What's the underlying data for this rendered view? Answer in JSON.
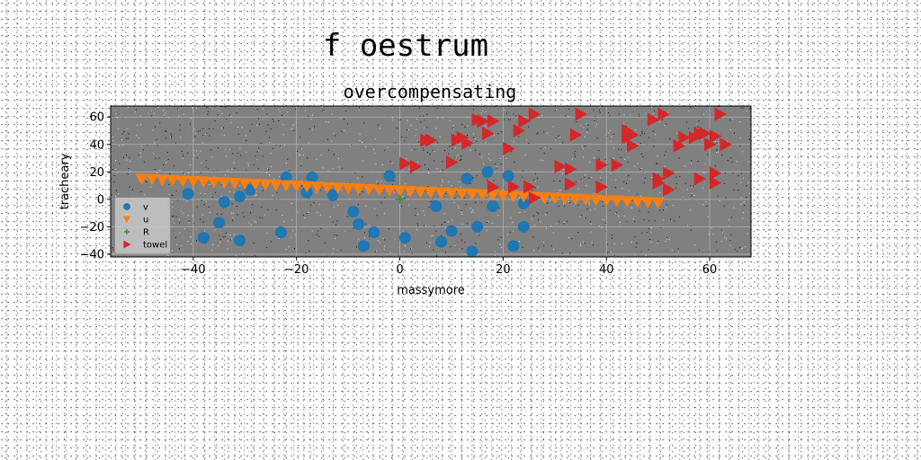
{
  "chart_data": {
    "type": "scatter",
    "suptitle": "f oestrum",
    "title": "overcompensating",
    "xlabel": "massymore",
    "ylabel": "tracheary",
    "xlim": [
      -56,
      68
    ],
    "ylim": [
      -42,
      68
    ],
    "xticks": [
      -40,
      -20,
      0,
      20,
      40,
      60
    ],
    "yticks": [
      -40,
      -20,
      0,
      20,
      40,
      60
    ],
    "grid": true,
    "legend_position": "lower-left",
    "series": [
      {
        "name": "v",
        "marker": "circle",
        "color": "#1f77b4",
        "points": [
          [
            -41,
            4
          ],
          [
            -38,
            -28
          ],
          [
            -35,
            -17
          ],
          [
            -34,
            -2
          ],
          [
            -31,
            2
          ],
          [
            -31,
            -30
          ],
          [
            -29,
            7
          ],
          [
            -23,
            -24
          ],
          [
            -22,
            16
          ],
          [
            -18,
            5
          ],
          [
            -17,
            16
          ],
          [
            -13,
            3
          ],
          [
            -9,
            -9
          ],
          [
            -8,
            -18
          ],
          [
            -7,
            -34
          ],
          [
            -5,
            -24
          ],
          [
            -2,
            17
          ],
          [
            1,
            -28
          ],
          [
            7,
            -5
          ],
          [
            8,
            -31
          ],
          [
            10,
            -23
          ],
          [
            13,
            15
          ],
          [
            14,
            -38
          ],
          [
            15,
            -20
          ],
          [
            17,
            20
          ],
          [
            18,
            -5
          ],
          [
            21,
            17
          ],
          [
            22,
            -34
          ],
          [
            24,
            -20
          ],
          [
            24,
            -3
          ]
        ]
      },
      {
        "name": "u",
        "marker": "triangle-down",
        "color": "#ff7f0e",
        "points": [
          [
            -50,
            15
          ],
          [
            -48,
            14.7
          ],
          [
            -46,
            14.3
          ],
          [
            -44,
            14
          ],
          [
            -42,
            13.6
          ],
          [
            -40,
            13.3
          ],
          [
            -38,
            12.9
          ],
          [
            -36,
            12.6
          ],
          [
            -34,
            12.2
          ],
          [
            -32,
            11.9
          ],
          [
            -30,
            11.5
          ],
          [
            -28,
            11.2
          ],
          [
            -26,
            10.9
          ],
          [
            -24,
            10.5
          ],
          [
            -22,
            10.2
          ],
          [
            -20,
            9.8
          ],
          [
            -18,
            9.5
          ],
          [
            -16,
            9.1
          ],
          [
            -14,
            8.8
          ],
          [
            -12,
            8.4
          ],
          [
            -10,
            8.1
          ],
          [
            -8,
            7.7
          ],
          [
            -6,
            7.4
          ],
          [
            -4,
            7
          ],
          [
            -2,
            6.7
          ],
          [
            0,
            6.3
          ],
          [
            2,
            6
          ],
          [
            4,
            5.6
          ],
          [
            6,
            5.3
          ],
          [
            8,
            4.9
          ],
          [
            10,
            4.6
          ],
          [
            12,
            4.2
          ],
          [
            14,
            3.9
          ],
          [
            16,
            3.5
          ],
          [
            18,
            3.2
          ],
          [
            20,
            2.8
          ],
          [
            22,
            2.5
          ],
          [
            24,
            2.1
          ],
          [
            26,
            1.8
          ],
          [
            28,
            1.4
          ],
          [
            30,
            1.1
          ],
          [
            32,
            0.7
          ],
          [
            34,
            0.4
          ],
          [
            36,
            0
          ],
          [
            38,
            -0.3
          ],
          [
            40,
            -0.7
          ],
          [
            42,
            -1
          ],
          [
            44,
            -1.4
          ],
          [
            46,
            -1.7
          ],
          [
            48,
            -2.1
          ],
          [
            50,
            -2.4
          ]
        ]
      },
      {
        "name": "R",
        "marker": "plus",
        "color": "#2ca02c",
        "points": [
          [
            0,
            0
          ]
        ]
      },
      {
        "name": "towel",
        "marker": "triangle-right",
        "color": "#d62728",
        "points": [
          [
            1,
            26
          ],
          [
            3,
            24
          ],
          [
            5,
            43
          ],
          [
            6,
            43
          ],
          [
            10,
            27
          ],
          [
            11,
            43
          ],
          [
            12,
            45
          ],
          [
            13,
            41
          ],
          [
            15,
            58
          ],
          [
            16,
            57
          ],
          [
            17,
            48
          ],
          [
            18,
            57
          ],
          [
            18,
            9
          ],
          [
            21,
            37
          ],
          [
            22,
            9
          ],
          [
            23,
            50
          ],
          [
            24,
            57
          ],
          [
            25,
            9
          ],
          [
            26,
            62
          ],
          [
            26,
            1
          ],
          [
            31,
            24
          ],
          [
            33,
            22
          ],
          [
            33,
            11
          ],
          [
            34,
            47
          ],
          [
            35,
            62
          ],
          [
            39,
            9
          ],
          [
            39,
            25
          ],
          [
            42,
            25
          ],
          [
            44,
            50
          ],
          [
            44,
            45
          ],
          [
            45,
            47
          ],
          [
            45,
            39
          ],
          [
            49,
            58
          ],
          [
            50,
            15
          ],
          [
            50,
            12
          ],
          [
            51,
            62
          ],
          [
            52,
            7
          ],
          [
            52,
            19
          ],
          [
            54,
            39
          ],
          [
            55,
            45
          ],
          [
            57,
            45
          ],
          [
            58,
            48
          ],
          [
            58,
            15
          ],
          [
            59,
            48
          ],
          [
            60,
            40
          ],
          [
            61,
            46
          ],
          [
            61,
            12
          ],
          [
            61,
            19
          ],
          [
            62,
            62
          ],
          [
            63,
            40
          ]
        ]
      }
    ]
  }
}
